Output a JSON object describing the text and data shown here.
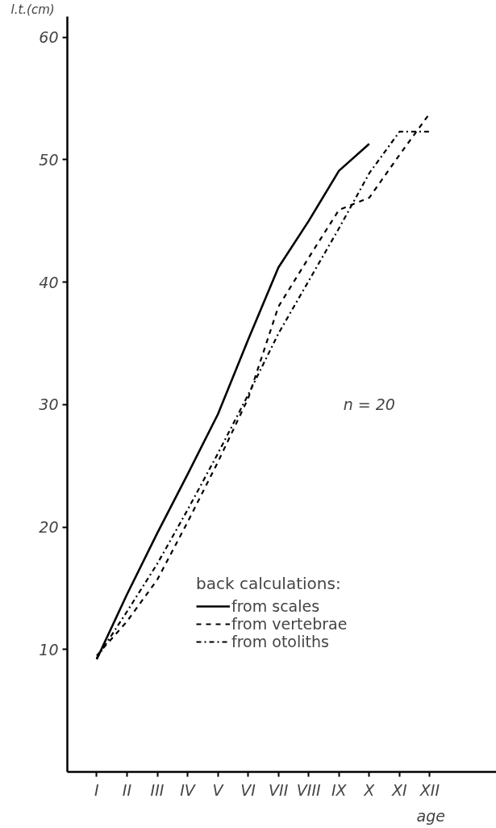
{
  "chart_data": {
    "type": "line",
    "ylabel": "l.t.(cm)",
    "xlabel": "age",
    "legend_title": "back calculations:",
    "categories": [
      "I",
      "II",
      "III",
      "IV",
      "V",
      "VI",
      "VII",
      "VIII",
      "IX",
      "X",
      "XI",
      "XII"
    ],
    "ylim": [
      0,
      61.7
    ],
    "yticks": [
      10,
      20,
      30,
      40,
      50,
      60
    ],
    "grid": false,
    "legend": "right",
    "marker": "none",
    "annotations": [
      "n = 20"
    ],
    "series": [
      {
        "name": "from scales",
        "color": "#000000",
        "line_style": "solid",
        "values": [
          9.2,
          14.5,
          19.5,
          24.3,
          29.2,
          35.3,
          41.2,
          45.0,
          49.1,
          51.3,
          null,
          null
        ]
      },
      {
        "name": "from vertebrae",
        "color": "#000000",
        "line_style": "dashed",
        "values": [
          9.5,
          12.3,
          15.7,
          20.4,
          25.3,
          30.5,
          38.0,
          42.0,
          45.9,
          46.9,
          50.4,
          53.8
        ]
      },
      {
        "name": "from otoliths",
        "color": "#000000",
        "line_style": "dashdot",
        "values": [
          9.3,
          13.1,
          17.0,
          21.4,
          26.0,
          30.8,
          35.8,
          40.1,
          44.4,
          48.9,
          52.3,
          52.3
        ]
      }
    ]
  }
}
